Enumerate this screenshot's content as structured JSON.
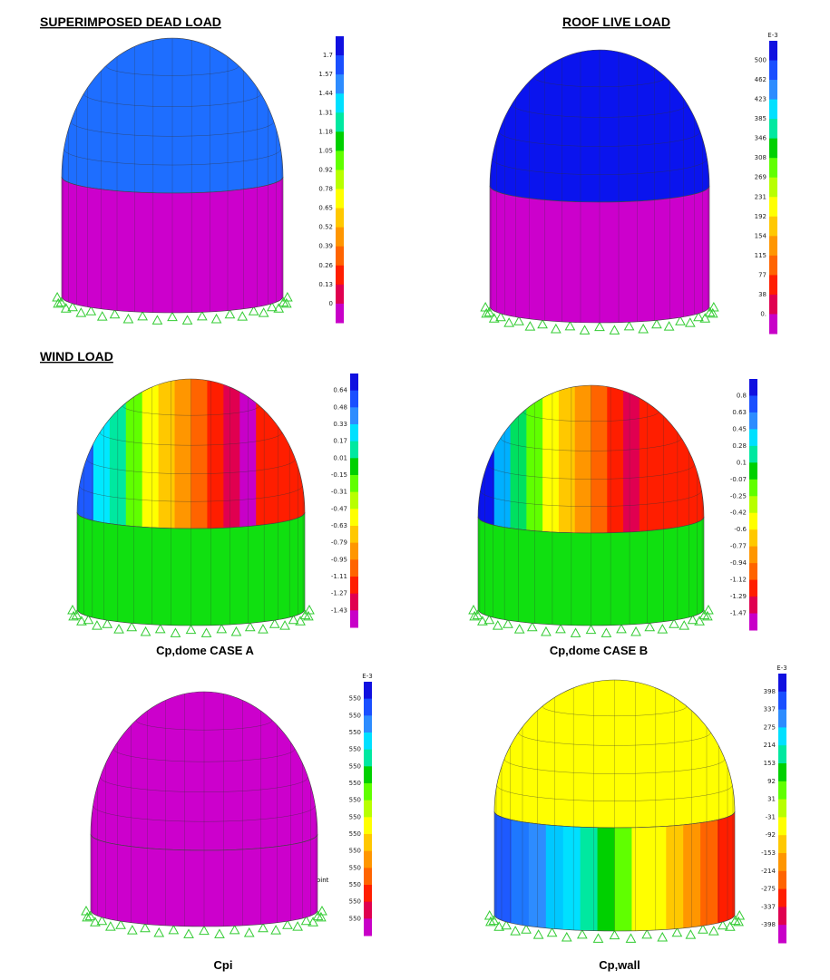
{
  "heading_wind": "WIND LOAD",
  "panels": [
    {
      "heading": "SUPERIMPOSED DEAD LOAD",
      "legend": {
        "labels": [
          "1.7",
          "1.57",
          "1.44",
          "1.31",
          "1.18",
          "1.05",
          "0.92",
          "0.78",
          "0.65",
          "0.52",
          "0.39",
          "0.26",
          "0.13",
          "0"
        ]
      }
    },
    {
      "heading": "ROOF LIVE LOAD",
      "legend": {
        "exponent": "E-3",
        "labels": [
          "500",
          "462",
          "423",
          "385",
          "346",
          "308",
          "269",
          "231",
          "192",
          "154",
          "115",
          "77",
          "38",
          "0."
        ]
      }
    },
    {
      "caption": "Cp,dome CASE A",
      "legend": {
        "labels": [
          "0.64",
          "0.48",
          "0.33",
          "0.17",
          "0.01",
          "-0.15",
          "-0.31",
          "-0.47",
          "-0.63",
          "-0.79",
          "-0.95",
          "-1.11",
          "-1.27",
          "-1.43"
        ]
      }
    },
    {
      "caption": "Cp,dome CASE B",
      "legend": {
        "labels": [
          "0.8",
          "0.63",
          "0.45",
          "0.28",
          "0.1",
          "-0.07",
          "-0.25",
          "-0.42",
          "-0.6",
          "-0.77",
          "-0.94",
          "-1.12",
          "-1.29",
          "-1.47"
        ]
      }
    },
    {
      "caption": "Cpi",
      "annotation": "Point",
      "legend": {
        "exponent": "E-3",
        "labels": [
          "550",
          "550",
          "550",
          "550",
          "550",
          "550",
          "550",
          "550",
          "550",
          "550",
          "550",
          "550",
          "550",
          "550"
        ]
      }
    },
    {
      "caption": "Cp,wall",
      "legend": {
        "exponent": "E-3",
        "labels": [
          "398",
          "337",
          "275",
          "214",
          "153",
          "92",
          "31",
          "-31",
          "-92",
          "-153",
          "-214",
          "-275",
          "-337",
          "-398"
        ]
      }
    }
  ]
}
